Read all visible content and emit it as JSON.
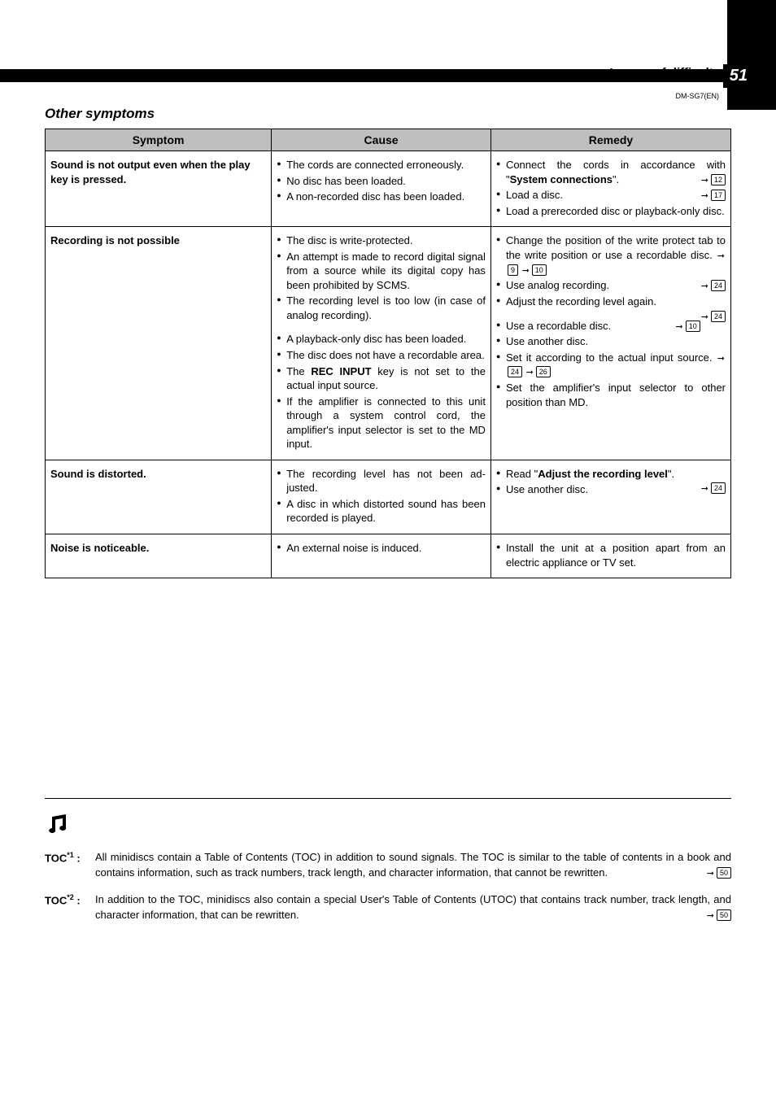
{
  "page_number": "51",
  "breadcrumb": "In case of difficulty",
  "doc_id": "DM-SG7(EN)",
  "section_title": "Other symptoms",
  "headers": {
    "symptom": "Symptom",
    "cause": "Cause",
    "remedy": "Remedy"
  },
  "rows": [
    {
      "symptom": "Sound is not output even when the play key is pressed.",
      "causes": [
        "The cords are connected errone­ously.",
        "No disc has been loaded.",
        "A non-recorded disc has been loaded."
      ],
      "remedies": [
        {
          "text_pre": "Connect the cords in accordance with \"",
          "bold": "System connections",
          "text_post": "\".",
          "refs": [
            "12"
          ]
        },
        {
          "text": "Load a disc.",
          "refs": [
            "17"
          ]
        },
        {
          "text": "Load a prerecorded disc or playback-only disc."
        }
      ]
    },
    {
      "symptom": "Recording is not possible",
      "cause_groups": [
        [
          "The disc is write-protected.",
          "An attempt is made to record digital signal from a source while its digital copy has been prohibited by SCMS.",
          "The recording level is too low (in case of analog recording)."
        ],
        [
          "A playback-only disc has been loaded.",
          "The disc does not have a recordable area.",
          {
            "pre": "The ",
            "bold": "REC INPUT",
            "post": " key is not set to the actual input source."
          },
          "If the amplifier is connected to this unit through a system control cord, the amplifier's input selector is set to the MD input."
        ]
      ],
      "remedy_groups": [
        [
          {
            "text": "Change the position of the write protect tab to the write position or use a recordable disc.",
            "refs": [
              "9",
              "10"
            ],
            "refs_inline": true
          },
          {
            "text": "Use analog recording.",
            "refs": [
              "24"
            ]
          },
          {
            "text": "Adjust the recording level again.",
            "refs": [
              "24"
            ],
            "ref_newline": true
          }
        ],
        [
          {
            "text": "Use a recordable disc.",
            "refs": [
              "10"
            ]
          },
          {
            "text": "Use another disc."
          },
          {
            "text": "Set it according to the actual input source.",
            "refs": [
              "24",
              "26"
            ],
            "refs_inline": true
          },
          {
            "text": "Set the amplifier's input selector to other position than MD."
          }
        ]
      ]
    },
    {
      "symptom": "Sound is distorted.",
      "causes": [
        "The recording level has not been ad­justed.",
        "A disc in which distorted sound has been recorded is played."
      ],
      "remedies": [
        {
          "text_pre": "Read \"",
          "bold": "Adjust the recording level",
          "text_post": "\".",
          "refs": [
            "24"
          ],
          "ref_newline": true
        },
        {
          "text": "Use another disc."
        }
      ]
    },
    {
      "symptom": "Noise is noticeable.",
      "causes": [
        "An external noise is induced."
      ],
      "remedies": [
        {
          "text": "Install the unit at a position apart from an electric appliance or TV set."
        }
      ]
    }
  ],
  "notes": [
    {
      "label": "TOC",
      "sup": "*1",
      "text": "All minidiscs contain a Table of Contents (TOC) in addition to sound signals. The TOC is similar to the table of contents in a book and contains information, such as track numbers, track length, and character information, that cannot be rewritten.",
      "ref": "50"
    },
    {
      "label": "TOC",
      "sup": "*2",
      "text": "In addition to the TOC, minidiscs also contain a special User's Table of Contents (UTOC) that contains track number, track length, and character information, that can be rewritten.",
      "ref": "50"
    }
  ]
}
